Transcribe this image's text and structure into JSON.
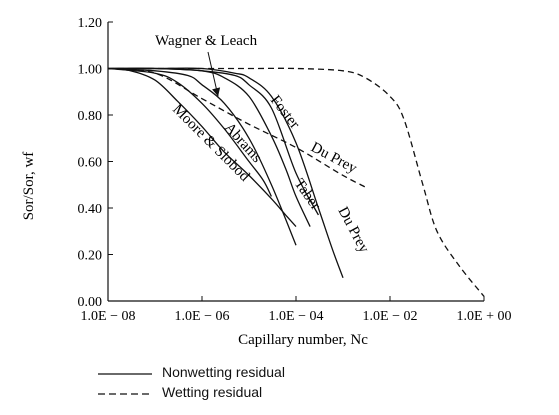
{
  "chart_data": {
    "type": "line",
    "title": "",
    "xlabel": "Capillary number, Nc",
    "ylabel": "Sor/Sor, wf",
    "x_scale": "log",
    "xlim": [
      1e-08,
      1
    ],
    "ylim": [
      0,
      1.2
    ],
    "x_ticks": [
      1e-08,
      1e-06,
      0.0001,
      0.01,
      1
    ],
    "x_tick_labels": [
      "1.0E − 08",
      "1.0E − 06",
      "1.0E − 04",
      "1.0E − 02",
      "1.0E + 00"
    ],
    "y_ticks": [
      0,
      0.2,
      0.4,
      0.6,
      0.8,
      1.0,
      1.2
    ],
    "y_tick_labels": [
      "0.00",
      "0.20",
      "0.40",
      "0.60",
      "0.80",
      "1.00",
      "1.20"
    ],
    "grid": false,
    "legend_position": "bottom-left",
    "series": [
      {
        "name": "Moore & Slobod",
        "style": "solid",
        "x": [
          1e-08,
          3e-08,
          1e-07,
          3e-07,
          1e-06,
          3e-06,
          1e-05,
          3e-05,
          6e-05,
          0.0001
        ],
        "y": [
          1.0,
          0.99,
          0.95,
          0.86,
          0.75,
          0.64,
          0.54,
          0.44,
          0.37,
          0.32
        ]
      },
      {
        "name": "Abrams",
        "style": "solid",
        "x": [
          1e-08,
          1e-07,
          3e-07,
          1e-06,
          3e-06,
          1e-05,
          2e-05,
          3e-05
        ],
        "y": [
          1.0,
          0.98,
          0.94,
          0.85,
          0.74,
          0.6,
          0.52,
          0.45
        ]
      },
      {
        "name": "Wagner & Leach",
        "style": "solid",
        "x": [
          1e-08,
          1e-07,
          5e-07,
          1e-06,
          3e-06,
          1e-05,
          3e-05,
          0.0001
        ],
        "y": [
          1.0,
          0.99,
          0.97,
          0.93,
          0.85,
          0.7,
          0.5,
          0.24
        ]
      },
      {
        "name": "Taber",
        "style": "solid",
        "x": [
          1e-08,
          1e-07,
          1e-06,
          3e-06,
          1e-05,
          3e-05,
          6e-05,
          0.0001,
          0.0002
        ],
        "y": [
          1.0,
          1.0,
          0.99,
          0.96,
          0.88,
          0.71,
          0.57,
          0.45,
          0.32
        ]
      },
      {
        "name": "Foster",
        "style": "solid",
        "x": [
          1e-08,
          1e-07,
          1e-06,
          5e-06,
          1e-05,
          3e-05,
          0.0001,
          0.0003
        ],
        "y": [
          1.0,
          1.0,
          0.99,
          0.97,
          0.93,
          0.83,
          0.55,
          0.37
        ]
      },
      {
        "name": "Du Prey",
        "style": "solid",
        "x": [
          1e-08,
          1e-07,
          1e-06,
          5e-06,
          1e-05,
          3e-05,
          0.0001,
          0.0003,
          0.0006,
          0.001
        ],
        "y": [
          1.0,
          1.0,
          1.0,
          0.98,
          0.96,
          0.88,
          0.68,
          0.4,
          0.22,
          0.1
        ]
      },
      {
        "name": "Du Prey",
        "style": "dashed",
        "x": [
          1e-08,
          1e-07,
          1e-06,
          1e-05,
          0.0001,
          0.001,
          0.003
        ],
        "y": [
          1.0,
          0.98,
          0.87,
          0.76,
          0.66,
          0.54,
          0.49
        ]
      },
      {
        "name": "",
        "style": "dashed",
        "x": [
          1e-08,
          1e-06,
          1e-05,
          0.0001,
          0.001,
          0.003,
          0.01,
          0.02,
          0.05,
          0.1,
          0.3,
          1
        ],
        "y": [
          1.0,
          1.0,
          1.0,
          1.0,
          0.99,
          0.96,
          0.88,
          0.78,
          0.5,
          0.3,
          0.15,
          0.02
        ]
      }
    ],
    "annotations": [
      "Wagner & Leach",
      "Foster",
      "Du Prey",
      "Abrams",
      "Moore & Slobod",
      "Taber",
      "Du Prey"
    ],
    "legend": [
      {
        "label": "Nonwetting residual",
        "style": "solid"
      },
      {
        "label": "Wetting residual",
        "style": "dashed"
      }
    ]
  }
}
